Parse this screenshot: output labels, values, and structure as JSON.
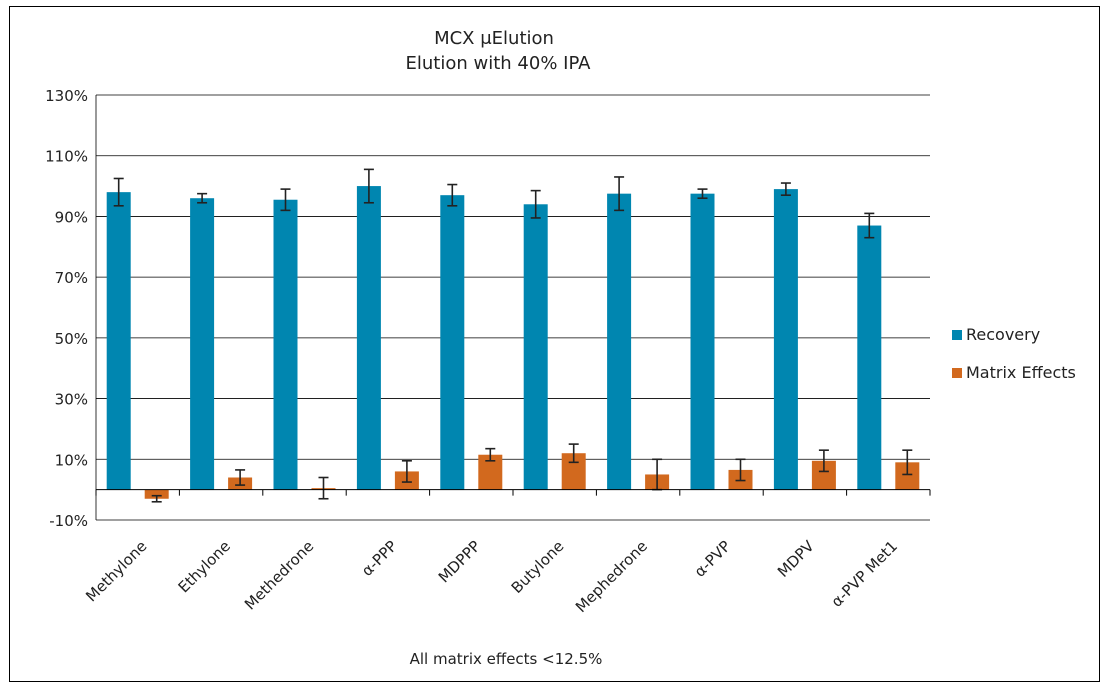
{
  "chart_data": {
    "type": "bar",
    "title": "MCX μElution",
    "subtitle": "Elution with 40% IPA",
    "categories": [
      "Methylone",
      "Ethylone",
      "Methedrone",
      "α-PPP",
      "MDPPP",
      "Butylone",
      "Mephedrone",
      "α-PVP",
      "MDPV",
      "α-PVP Met1"
    ],
    "series": [
      {
        "name": "Recovery",
        "color": "#0086B0",
        "values": [
          98,
          96,
          95.5,
          100,
          97,
          94,
          97.5,
          97.5,
          99,
          87
        ],
        "error": [
          4.5,
          1.5,
          3.5,
          5.5,
          3.5,
          4.5,
          5.5,
          1.5,
          2,
          4
        ]
      },
      {
        "name": "Matrix Effects",
        "color": "#D2691E",
        "values": [
          -3,
          4,
          0.5,
          6,
          11.5,
          12,
          5,
          6.5,
          9.5,
          9
        ],
        "error": [
          1,
          2.5,
          3.5,
          3.5,
          2,
          3,
          5,
          3.5,
          3.5,
          4
        ]
      }
    ],
    "y_ticks": [
      "130%",
      "110%",
      "90%",
      "70%",
      "50%",
      "30%",
      "10%",
      "-10%"
    ],
    "ylim": [
      -10,
      130
    ],
    "y_unit": "%",
    "grid": true,
    "legend_position": "right",
    "annotation": "All matrix effects <12.5%"
  }
}
